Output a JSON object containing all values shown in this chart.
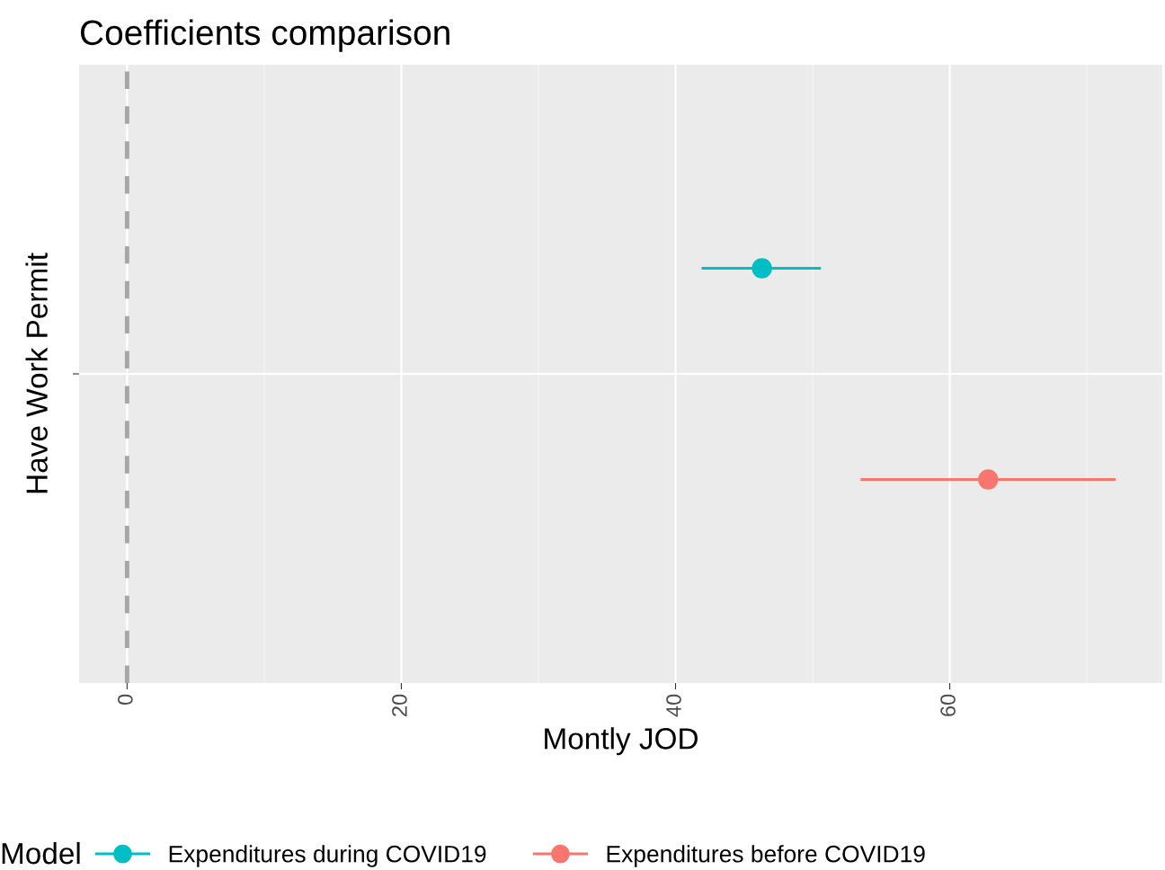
{
  "chart_data": {
    "type": "scatter",
    "title": "Coefficients comparison",
    "xlabel": "Montly JOD",
    "ylabel": "Have Work Permit",
    "legend_title": "Model",
    "orientation": "horizontal",
    "categories": [
      null
    ],
    "series": [
      {
        "name": "Expenditures during COVID19",
        "color": "#00bfc4",
        "values": [
          46.3
        ],
        "errors": [
          [
            41.9,
            50.6
          ]
        ]
      },
      {
        "name": "Expenditures before COVID19",
        "color": "#f8766d",
        "values": [
          62.8
        ],
        "errors": [
          [
            53.5,
            72.1
          ]
        ]
      }
    ],
    "xlim": [
      -3.5,
      75.5
    ],
    "xticks": [
      0,
      20,
      40,
      60
    ],
    "grid": true,
    "legend": "bottom",
    "marker": "circle",
    "ref_lines": [
      {
        "axis": "x",
        "value": 0,
        "color": "#a6a6a6",
        "line_style": "dashed"
      }
    ]
  }
}
